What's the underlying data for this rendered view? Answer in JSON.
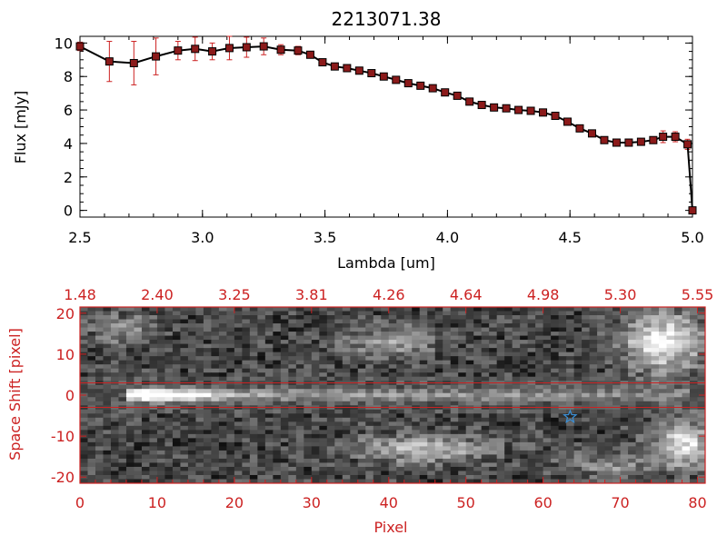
{
  "colors": {
    "axes_black": "#000000",
    "axes_red": "#cc2222",
    "marker_fill": "#8b1a1a",
    "errorbar": "#cc2222",
    "star": "#3a8fd6",
    "background": "#ffffff"
  },
  "chart_data": [
    {
      "type": "line",
      "title": "2213071.38",
      "xlabel": "Lambda [um]",
      "ylabel": "Flux [mJy]",
      "xlim": [
        2.5,
        5.0
      ],
      "ylim": [
        -0.4,
        10.4
      ],
      "xticks": [
        "2.5",
        "3.0",
        "3.5",
        "4.0",
        "4.5",
        "5.0"
      ],
      "yticks": [
        "0",
        "2",
        "4",
        "6",
        "8",
        "10"
      ],
      "marker": "square",
      "grid": false,
      "x": [
        2.5,
        2.62,
        2.72,
        2.81,
        2.9,
        2.97,
        3.04,
        3.11,
        3.18,
        3.25,
        3.32,
        3.39,
        3.44,
        3.49,
        3.54,
        3.59,
        3.64,
        3.69,
        3.74,
        3.79,
        3.84,
        3.89,
        3.94,
        3.99,
        4.04,
        4.09,
        4.14,
        4.19,
        4.24,
        4.29,
        4.34,
        4.39,
        4.44,
        4.49,
        4.54,
        4.59,
        4.64,
        4.69,
        4.74,
        4.79,
        4.84,
        4.88,
        4.93,
        4.98,
        5.0
      ],
      "y": [
        9.8,
        8.9,
        8.8,
        9.2,
        9.55,
        9.65,
        9.5,
        9.7,
        9.75,
        9.8,
        9.6,
        9.55,
        9.3,
        8.85,
        8.6,
        8.5,
        8.35,
        8.2,
        8.0,
        7.8,
        7.6,
        7.45,
        7.3,
        7.05,
        6.85,
        6.5,
        6.3,
        6.15,
        6.1,
        6.0,
        5.95,
        5.85,
        5.65,
        5.3,
        4.9,
        4.6,
        4.2,
        4.05,
        4.05,
        4.1,
        4.2,
        4.4,
        4.4,
        3.95,
        0.0
      ],
      "yerr": [
        0.25,
        1.2,
        1.3,
        1.1,
        0.55,
        0.7,
        0.5,
        0.7,
        0.6,
        0.5,
        0.3,
        0.25,
        0.15,
        0.1,
        0.1,
        0.1,
        0.1,
        0.1,
        0.1,
        0.1,
        0.1,
        0.1,
        0.1,
        0.1,
        0.1,
        0.1,
        0.1,
        0.1,
        0.1,
        0.1,
        0.1,
        0.1,
        0.1,
        0.1,
        0.1,
        0.1,
        0.1,
        0.1,
        0.1,
        0.1,
        0.15,
        0.35,
        0.3,
        0.3,
        0.0
      ]
    },
    {
      "type": "heatmap",
      "xlabel": "Pixel",
      "ylabel": "Space Shift [pixel]",
      "xlim": [
        0,
        81
      ],
      "ylim": [
        -21.5,
        21.5
      ],
      "xticks": [
        "0",
        "10",
        "20",
        "30",
        "40",
        "50",
        "60",
        "70",
        "80"
      ],
      "yticks": [
        "-20",
        "-10",
        "0",
        "10",
        "20"
      ],
      "top_axis_ticks": [
        "1.48",
        "2.40",
        "3.25",
        "3.81",
        "4.26",
        "4.64",
        "4.98",
        "5.30",
        "5.55"
      ],
      "colormap": "grayscale",
      "extraction_window": [
        -3,
        3
      ],
      "star_marker": {
        "x": 63.5,
        "y": -5.3
      },
      "trace": {
        "y": 0,
        "x_start": 6,
        "x_end": 78,
        "peak_x": 10
      }
    }
  ]
}
